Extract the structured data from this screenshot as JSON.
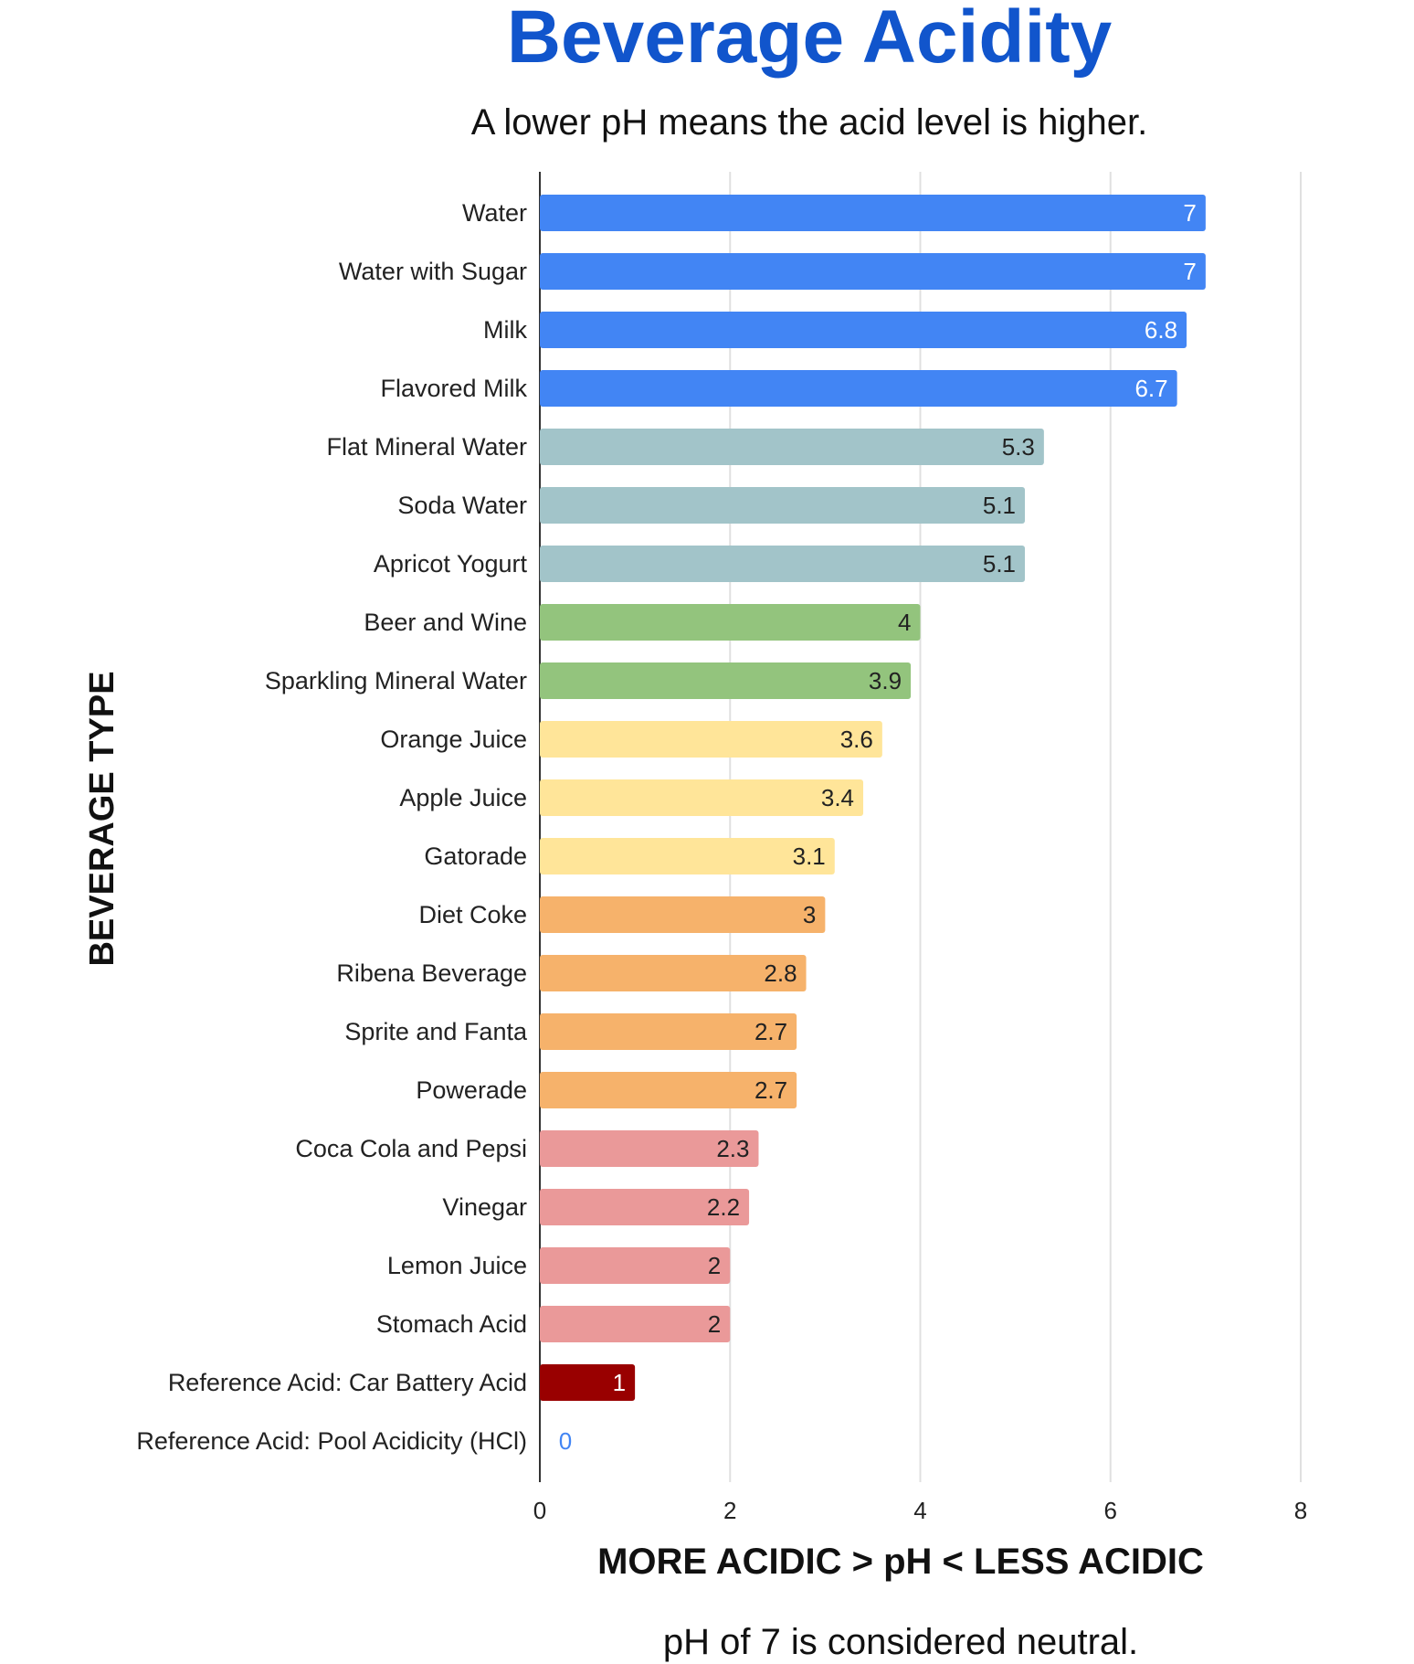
{
  "chart_data": {
    "type": "bar",
    "orientation": "horizontal",
    "title": "Beverage Acidity",
    "subtitle": "A lower pH means the acid level is higher.",
    "xlabel": "MORE ACIDIC > pH < LESS ACIDIC",
    "ylabel": "BEVERAGE TYPE",
    "footnote": "pH of 7 is considered neutral.",
    "xlim": [
      0,
      8
    ],
    "xticks": [
      "0",
      "2",
      "4",
      "6",
      "8"
    ],
    "grid": true,
    "title_color": "#1155cc",
    "categories": [
      "Water",
      "Water with Sugar",
      "Milk",
      "Flavored Milk",
      "Flat Mineral Water",
      "Soda Water",
      "Apricot Yogurt",
      "Beer and Wine",
      "Sparkling Mineral Water",
      "Orange Juice",
      "Apple Juice",
      "Gatorade",
      "Diet Coke",
      "Ribena Beverage",
      "Sprite and Fanta",
      "Powerade",
      "Coca Cola and Pepsi",
      "Vinegar",
      "Lemon Juice",
      "Stomach Acid",
      "Reference Acid: Car Battery Acid",
      "Reference Acid: Pool Acidicity (HCl)"
    ],
    "values": [
      7,
      7,
      6.8,
      6.7,
      5.3,
      5.1,
      5.1,
      4,
      3.9,
      3.6,
      3.4,
      3.1,
      3,
      2.8,
      2.7,
      2.7,
      2.3,
      2.2,
      2,
      2,
      1,
      0
    ],
    "value_labels": [
      "7",
      "7",
      "6.8",
      "6.7",
      "5.3",
      "5.1",
      "5.1",
      "4",
      "3.9",
      "3.6",
      "3.4",
      "3.1",
      "3",
      "2.8",
      "2.7",
      "2.7",
      "2.3",
      "2.2",
      "2",
      "2",
      "1",
      "0"
    ],
    "colors": [
      "#4285f4",
      "#4285f4",
      "#4285f4",
      "#4285f4",
      "#a2c4c9",
      "#a2c4c9",
      "#a2c4c9",
      "#93c47d",
      "#93c47d",
      "#ffe599",
      "#ffe599",
      "#ffe599",
      "#f6b26b",
      "#f6b26b",
      "#f6b26b",
      "#f6b26b",
      "#ea9999",
      "#ea9999",
      "#ea9999",
      "#ea9999",
      "#990000",
      "#4285f4"
    ],
    "label_colors": [
      "#ffffff",
      "#ffffff",
      "#ffffff",
      "#ffffff",
      "#222222",
      "#222222",
      "#222222",
      "#222222",
      "#222222",
      "#222222",
      "#222222",
      "#222222",
      "#222222",
      "#222222",
      "#222222",
      "#222222",
      "#222222",
      "#222222",
      "#222222",
      "#222222",
      "#ffffff",
      "#4285f4"
    ]
  }
}
